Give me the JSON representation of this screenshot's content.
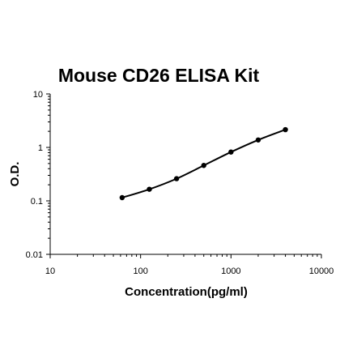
{
  "chart_data": {
    "type": "scatter",
    "title": "Mouse CD26 ELISA Kit",
    "xlabel": "Concentration(pg/ml)",
    "ylabel": "O.D.",
    "x_scale": "log",
    "y_scale": "log",
    "xlim": [
      10,
      10000
    ],
    "ylim": [
      0.01,
      10
    ],
    "x_ticks": [
      "10",
      "100",
      "1000",
      "10000"
    ],
    "y_ticks": [
      "0.01",
      "0.1",
      "1",
      "10"
    ],
    "grid": false,
    "legend": "none",
    "series": [
      {
        "x": [
          62.5,
          125,
          250,
          500,
          1000,
          2000,
          4000
        ],
        "y": [
          0.115,
          0.165,
          0.26,
          0.46,
          0.82,
          1.38,
          2.15
        ]
      }
    ]
  }
}
